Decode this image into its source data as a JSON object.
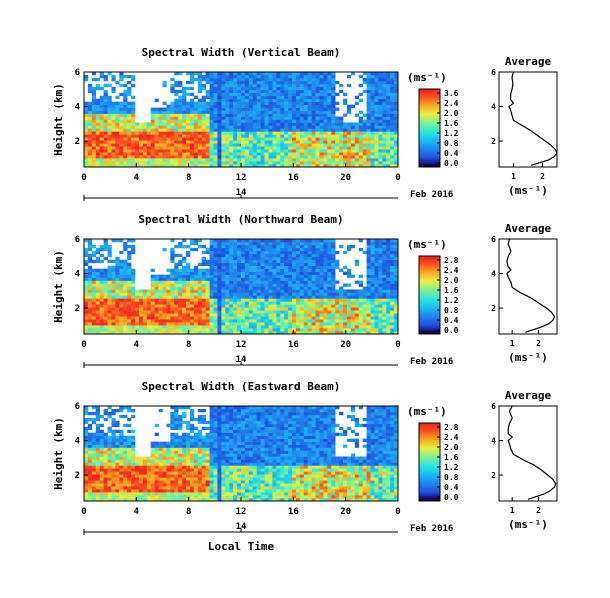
{
  "chart_data": [
    {
      "type": "heatmap",
      "title": "Spectral Width (Vertical Beam)",
      "ylabel": "Height (km)",
      "y_ticks": [
        "6",
        "4",
        "2"
      ],
      "x_ticks": [
        "0",
        "4",
        "8",
        "12",
        "16",
        "20",
        "0"
      ],
      "date_tick": "14",
      "date_label": "Feb 2016",
      "xlim": [
        0,
        24
      ],
      "ylim": [
        0.5,
        6
      ],
      "colorbar": {
        "unit": "(ms⁻¹)",
        "labels": [
          "3.6",
          "2.4",
          "2.0",
          "1.6",
          "1.2",
          "0.8",
          "0.4",
          "0.0"
        ],
        "range": [
          0,
          3.6
        ]
      },
      "average": {
        "title": "Average",
        "xlabel": "(ms⁻¹)",
        "x_ticks": [
          "1",
          "2"
        ],
        "y_ticks": [
          "6",
          "4",
          "2"
        ],
        "xlim": [
          0.5,
          2.5
        ],
        "x": [
          1.0,
          0.95,
          0.98,
          0.95,
          0.9,
          0.9,
          1.0,
          0.85,
          0.9,
          0.95,
          1.0,
          1.3,
          1.6,
          1.85,
          2.1,
          2.3,
          2.45,
          2.5,
          2.4,
          2.2,
          1.9,
          1.6
        ],
        "y": [
          6.0,
          5.7,
          5.3,
          5.0,
          4.7,
          4.4,
          4.2,
          4.0,
          3.8,
          3.5,
          3.2,
          2.9,
          2.6,
          2.3,
          2.0,
          1.75,
          1.5,
          1.3,
          1.1,
          0.9,
          0.75,
          0.6
        ]
      }
    },
    {
      "type": "heatmap",
      "title": "Spectral Width (Northward Beam)",
      "ylabel": "Height (km)",
      "y_ticks": [
        "6",
        "4",
        "2"
      ],
      "x_ticks": [
        "0",
        "4",
        "8",
        "12",
        "16",
        "20",
        "0"
      ],
      "date_tick": "14",
      "date_label": "Feb 2016",
      "xlim": [
        0,
        24
      ],
      "ylim": [
        0.5,
        6
      ],
      "colorbar": {
        "unit": "(ms⁻¹)",
        "labels": [
          "2.8",
          "2.4",
          "2.0",
          "1.6",
          "1.2",
          "0.8",
          "0.4",
          "0.0"
        ],
        "range": [
          0,
          2.8
        ]
      },
      "average": {
        "title": "Average",
        "xlabel": "(ms⁻¹)",
        "x_ticks": [
          "1",
          "2"
        ],
        "y_ticks": [
          "6",
          "4",
          "2"
        ],
        "xlim": [
          0.5,
          2.7
        ],
        "x": [
          0.9,
          0.85,
          0.95,
          0.85,
          0.8,
          0.85,
          0.95,
          0.8,
          0.85,
          0.95,
          1.0,
          1.3,
          1.7,
          2.0,
          2.3,
          2.5,
          2.6,
          2.55,
          2.4,
          2.1,
          1.8,
          1.5
        ],
        "y": [
          6.0,
          5.7,
          5.3,
          5.0,
          4.7,
          4.4,
          4.2,
          4.0,
          3.8,
          3.5,
          3.2,
          2.9,
          2.6,
          2.3,
          2.0,
          1.75,
          1.5,
          1.3,
          1.1,
          0.9,
          0.75,
          0.6
        ]
      }
    },
    {
      "type": "heatmap",
      "title": "Spectral Width (Eastward Beam)",
      "ylabel": "Height (km)",
      "y_ticks": [
        "6",
        "4",
        "2"
      ],
      "x_ticks": [
        "0",
        "4",
        "8",
        "12",
        "16",
        "20",
        "0"
      ],
      "date_tick": "14",
      "date_label": "Feb 2016",
      "xlabel": "Local Time",
      "xlim": [
        0,
        24
      ],
      "ylim": [
        0.5,
        6
      ],
      "colorbar": {
        "unit": "(ms⁻¹)",
        "labels": [
          "2.8",
          "2.4",
          "2.0",
          "1.6",
          "1.2",
          "0.8",
          "0.4",
          "0.0"
        ],
        "range": [
          0,
          2.8
        ]
      },
      "average": {
        "title": "Average",
        "xlabel": "(ms⁻¹)",
        "x_ticks": [
          "1",
          "2"
        ],
        "y_ticks": [
          "6",
          "4",
          "2"
        ],
        "xlim": [
          0.5,
          2.7
        ],
        "x": [
          1.0,
          0.9,
          1.0,
          0.9,
          0.85,
          0.85,
          1.0,
          0.85,
          0.9,
          0.95,
          1.05,
          1.4,
          1.8,
          2.1,
          2.35,
          2.55,
          2.65,
          2.6,
          2.45,
          2.2,
          1.9,
          1.6
        ],
        "y": [
          6.0,
          5.7,
          5.3,
          5.0,
          4.7,
          4.4,
          4.2,
          4.0,
          3.8,
          3.5,
          3.2,
          2.9,
          2.6,
          2.3,
          2.0,
          1.75,
          1.5,
          1.3,
          1.1,
          0.9,
          0.75,
          0.6
        ]
      }
    }
  ]
}
